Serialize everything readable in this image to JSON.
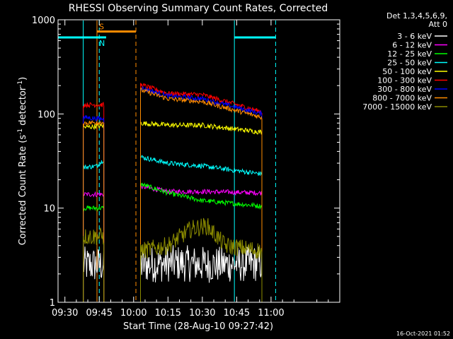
{
  "chart_data": {
    "type": "line",
    "title": "RHESSI Observing Summary Count Rates, Corrected",
    "xlabel": "Start Time (28-Aug-10 09:27:42)",
    "ylabel_main": "Corrected Count Rate (s",
    "ylabel_sup1": "-1",
    "ylabel_mid": " detector",
    "ylabel_sup2": "-1",
    "ylabel_end": ")",
    "timestamp": "16-Oct-2021 01:52",
    "x_range_minutes": [
      -3,
      120
    ],
    "ylim": [
      1,
      1000
    ],
    "y_scale": "log",
    "x_ticks": [
      {
        "t": 0,
        "label": "09:30"
      },
      {
        "t": 15,
        "label": "09:45"
      },
      {
        "t": 30,
        "label": "10:00"
      },
      {
        "t": 45,
        "label": "10:15"
      },
      {
        "t": 60,
        "label": "10:30"
      },
      {
        "t": 75,
        "label": "10:45"
      },
      {
        "t": 90,
        "label": "11:00"
      }
    ],
    "y_ticks": [
      {
        "v": 1,
        "label": "1"
      },
      {
        "v": 10,
        "label": "10"
      },
      {
        "v": 100,
        "label": "100"
      },
      {
        "v": 1000,
        "label": "1000"
      }
    ],
    "legend_header": [
      "Det 1,3,4,5,6,9,",
      "Att 0"
    ],
    "legend_position": "top-right",
    "segments": [
      [
        8,
        17
      ],
      [
        33,
        86
      ]
    ],
    "series": [
      {
        "name": "3 - 6 keV",
        "color": "#ffffff",
        "points": [
          [
            8,
            2.5
          ],
          [
            17,
            2.5
          ],
          [
            33,
            2.5
          ],
          [
            50,
            2.6
          ],
          [
            65,
            2.5
          ],
          [
            86,
            2.6
          ]
        ]
      },
      {
        "name": "6 - 12 keV",
        "color": "#ff00ff",
        "points": [
          [
            8,
            14
          ],
          [
            17,
            14
          ],
          [
            33,
            17
          ],
          [
            45,
            15
          ],
          [
            60,
            15
          ],
          [
            86,
            14.5
          ]
        ]
      },
      {
        "name": "12 - 25 keV",
        "color": "#00ff00",
        "points": [
          [
            8,
            10
          ],
          [
            17,
            10
          ],
          [
            33,
            18
          ],
          [
            45,
            14.5
          ],
          [
            60,
            12
          ],
          [
            86,
            10.5
          ]
        ]
      },
      {
        "name": "25 - 50 keV",
        "color": "#00ffff",
        "points": [
          [
            8,
            27
          ],
          [
            14,
            28
          ],
          [
            17,
            33
          ],
          [
            33,
            35
          ],
          [
            45,
            30
          ],
          [
            60,
            28
          ],
          [
            86,
            23
          ]
        ]
      },
      {
        "name": "50 - 100 keV",
        "color": "#ffff00",
        "points": [
          [
            8,
            72
          ],
          [
            17,
            75
          ],
          [
            33,
            80
          ],
          [
            45,
            76
          ],
          [
            60,
            76
          ],
          [
            86,
            64
          ]
        ]
      },
      {
        "name": "100 - 300 keV",
        "color": "#ff0000",
        "points": [
          [
            8,
            125
          ],
          [
            17,
            125
          ],
          [
            33,
            205
          ],
          [
            45,
            165
          ],
          [
            60,
            160
          ],
          [
            86,
            105
          ]
        ]
      },
      {
        "name": "300 - 800 keV",
        "color": "#0000ff",
        "points": [
          [
            8,
            92
          ],
          [
            17,
            88
          ],
          [
            33,
            190
          ],
          [
            45,
            155
          ],
          [
            60,
            145
          ],
          [
            86,
            100
          ]
        ]
      },
      {
        "name": "800 - 7000 keV",
        "color": "#ff8c00",
        "points": [
          [
            8,
            80
          ],
          [
            17,
            82
          ],
          [
            33,
            180
          ],
          [
            45,
            145
          ],
          [
            60,
            135
          ],
          [
            86,
            92
          ]
        ]
      },
      {
        "name": "7000 - 15000 keV",
        "color": "#8b8b00",
        "points": [
          [
            8,
            5
          ],
          [
            17,
            5
          ],
          [
            33,
            3.5
          ],
          [
            45,
            4
          ],
          [
            55,
            6
          ],
          [
            62,
            6.5
          ],
          [
            70,
            4
          ],
          [
            86,
            3.5
          ]
        ]
      }
    ],
    "flag_bars": [
      {
        "label": "",
        "color": "#00ffff",
        "y": 650,
        "t_range": [
          -3,
          15
        ]
      },
      {
        "label": "S",
        "color": "#ff8c00",
        "y": 750,
        "t_range": [
          14,
          31
        ]
      },
      {
        "label": "N",
        "color": "#00ffff",
        "y": 650,
        "t_range": [
          14,
          18
        ]
      },
      {
        "label": "",
        "color": "#00ffff",
        "y": 650,
        "t_range": [
          74,
          92
        ]
      }
    ],
    "vlines": [
      {
        "t": 8,
        "color": "#00ffff",
        "style": "solid"
      },
      {
        "t": 14,
        "color": "#ff8c00",
        "style": "solid"
      },
      {
        "t": 15,
        "color": "#00ffff",
        "style": "dashed"
      },
      {
        "t": 31,
        "color": "#ff8c00",
        "style": "dashed"
      },
      {
        "t": 74,
        "color": "#00ffff",
        "style": "solid"
      },
      {
        "t": 92,
        "color": "#00ffff",
        "style": "dashed"
      }
    ]
  }
}
